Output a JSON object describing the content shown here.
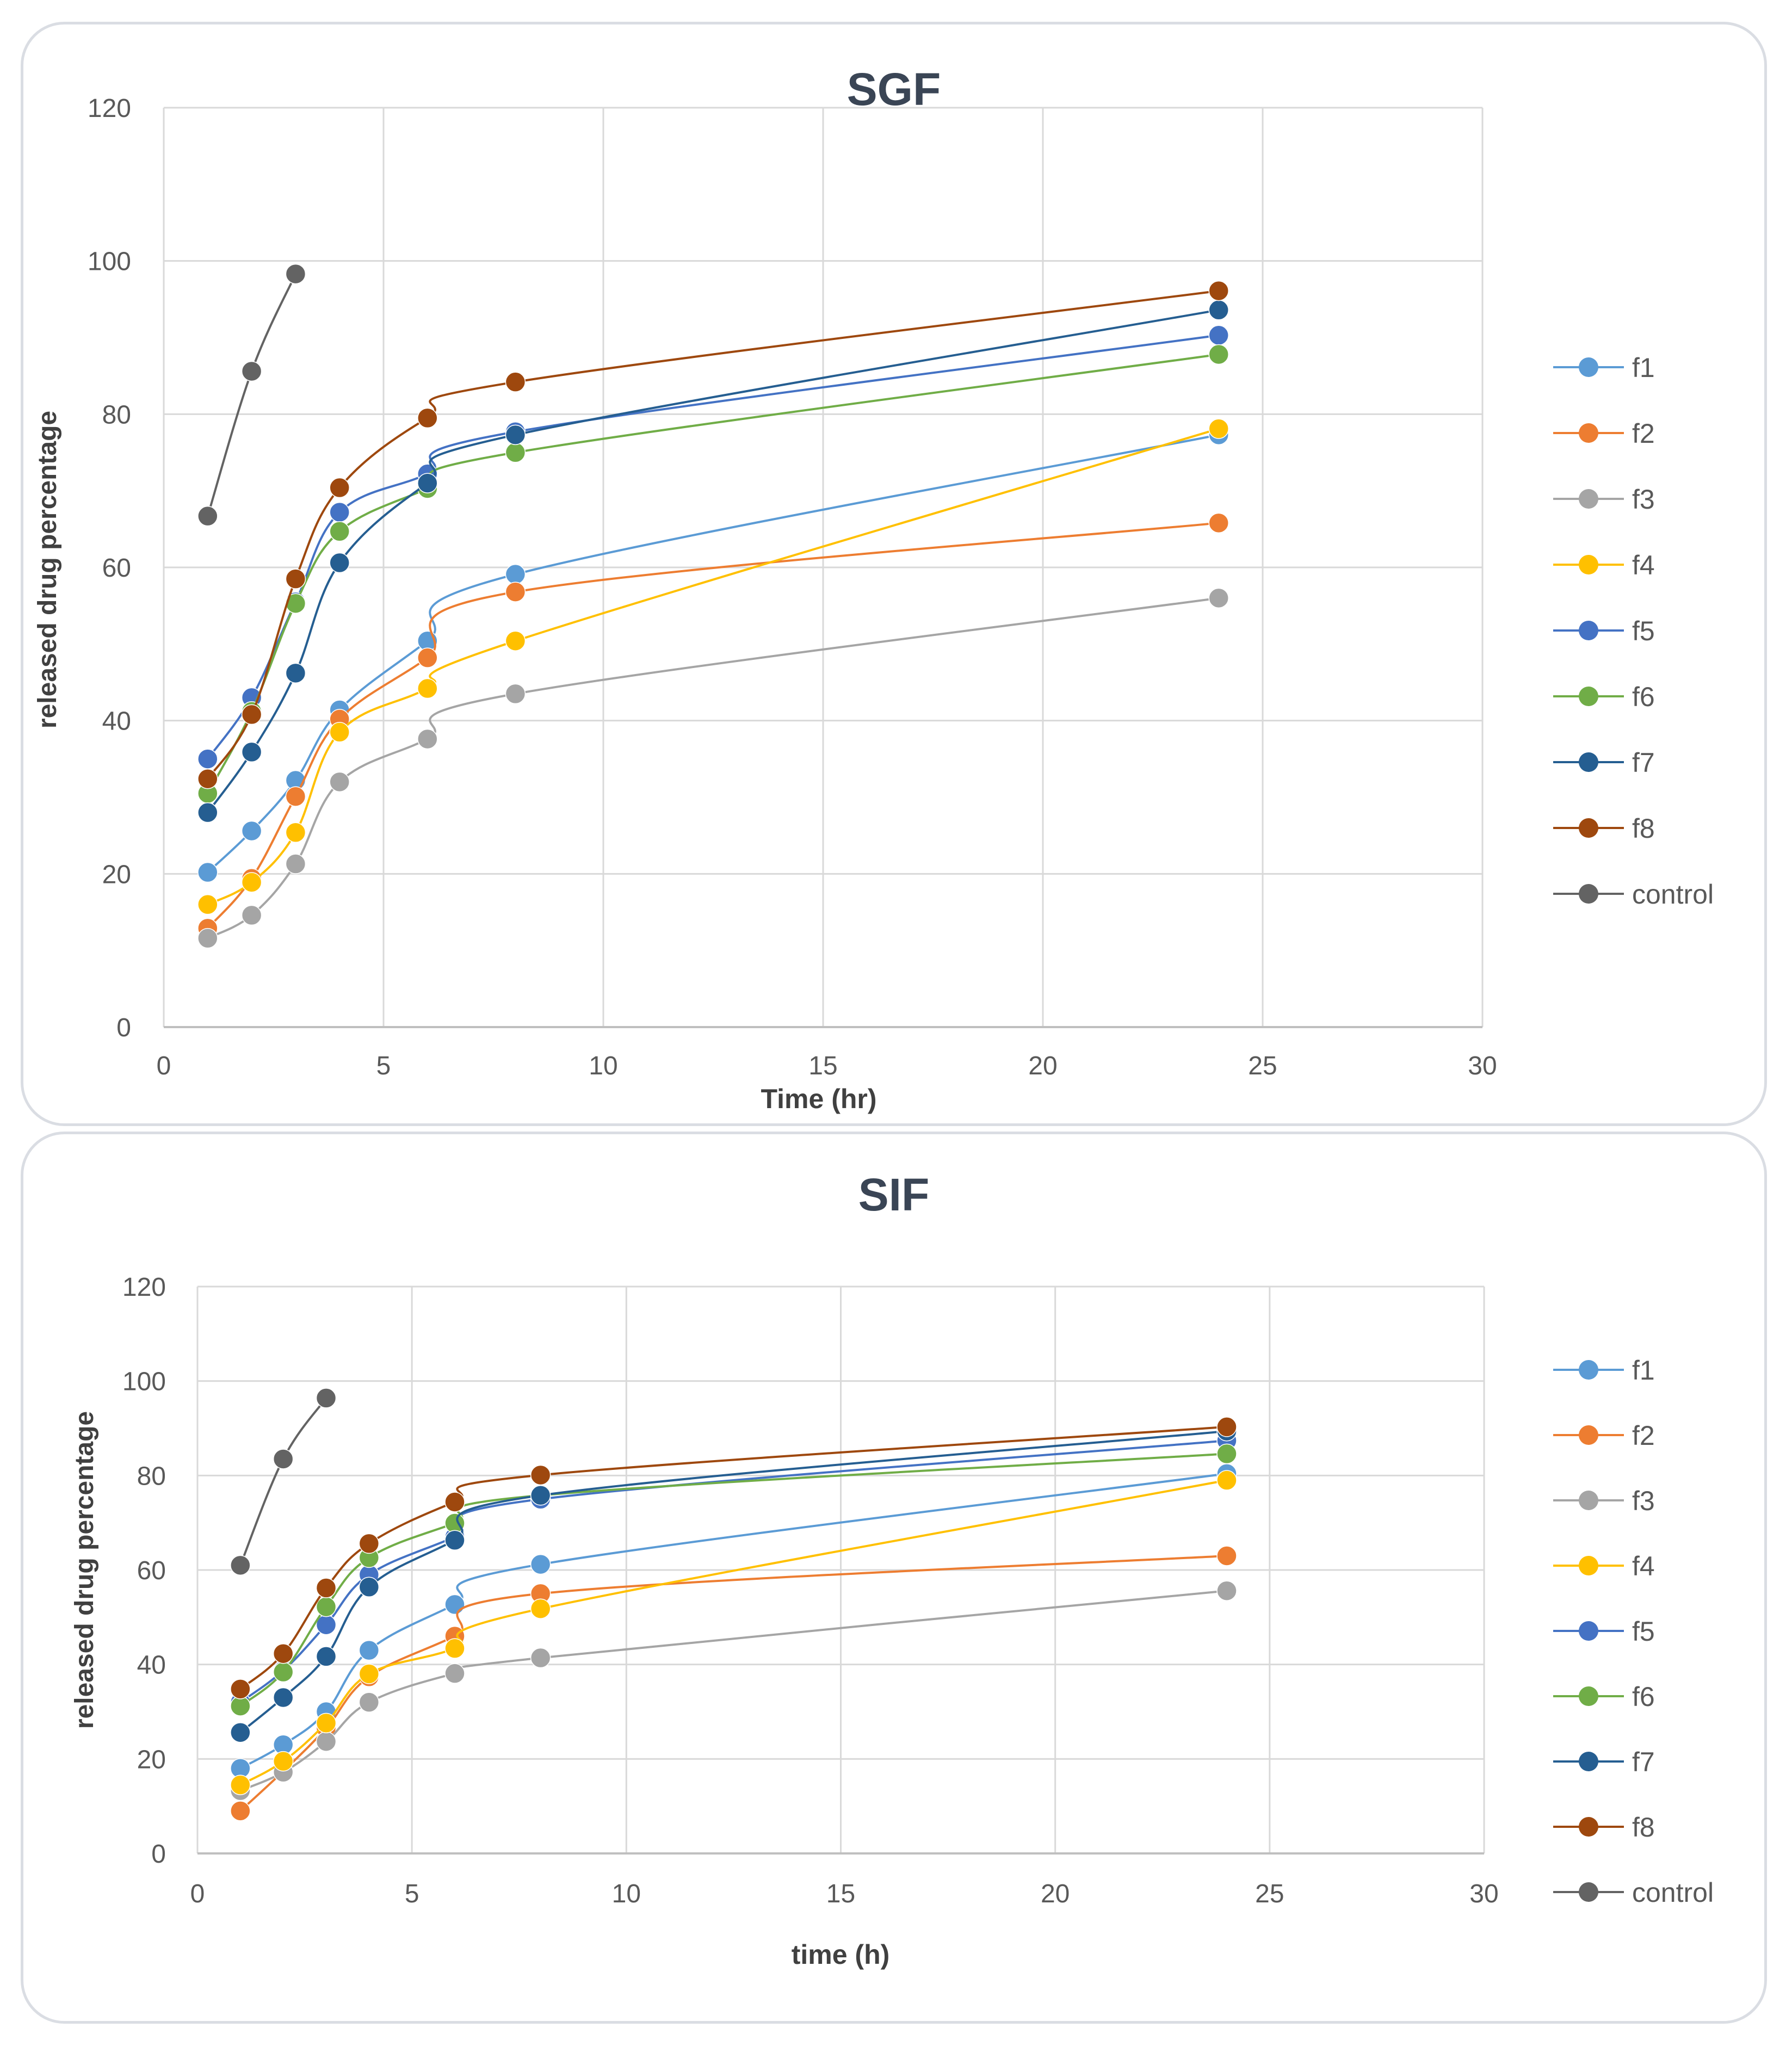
{
  "chart_data": [
    {
      "type": "line",
      "title": "SGF",
      "xlabel": "Time (hr)",
      "ylabel": "released drug percentage",
      "xlim": [
        0,
        30
      ],
      "ylim": [
        0,
        120
      ],
      "xticks": [
        0,
        5,
        10,
        15,
        20,
        25,
        30
      ],
      "yticks": [
        0,
        20,
        40,
        60,
        80,
        100,
        120
      ],
      "grid": true,
      "legend": "right",
      "series": [
        {
          "name": "f1",
          "color": "#5B9BD5",
          "x": [
            1,
            2,
            3,
            4,
            6,
            8,
            24
          ],
          "values": [
            20.2,
            25.6,
            32.2,
            41.4,
            50.4,
            59.1,
            77.3
          ]
        },
        {
          "name": "f2",
          "color": "#ED7D31",
          "x": [
            1,
            2,
            3,
            4,
            6,
            8,
            24
          ],
          "values": [
            12.9,
            19.4,
            30.1,
            40.2,
            48.2,
            56.8,
            65.8
          ]
        },
        {
          "name": "f3",
          "color": "#A5A5A5",
          "x": [
            1,
            2,
            3,
            4,
            6,
            8,
            24
          ],
          "values": [
            11.6,
            14.6,
            21.3,
            32.0,
            37.6,
            43.5,
            56.0
          ]
        },
        {
          "name": "f4",
          "color": "#FFC000",
          "x": [
            1,
            2,
            3,
            4,
            6,
            8,
            24
          ],
          "values": [
            16.0,
            18.9,
            25.4,
            38.5,
            44.2,
            50.4,
            78.1
          ]
        },
        {
          "name": "f5",
          "color": "#4472C4",
          "x": [
            1,
            2,
            3,
            4,
            6,
            8,
            24
          ],
          "values": [
            35.0,
            43.0,
            55.5,
            67.2,
            72.2,
            77.7,
            90.3
          ]
        },
        {
          "name": "f6",
          "color": "#70AD47",
          "x": [
            1,
            2,
            3,
            4,
            6,
            8,
            24
          ],
          "values": [
            30.5,
            41.2,
            55.3,
            64.7,
            70.3,
            75.0,
            87.8
          ]
        },
        {
          "name": "f7",
          "color": "#255E91",
          "x": [
            1,
            2,
            3,
            4,
            6,
            8,
            24
          ],
          "values": [
            28.0,
            35.9,
            46.2,
            60.6,
            71.0,
            77.3,
            93.6
          ]
        },
        {
          "name": "f8",
          "color": "#9E480E",
          "x": [
            1,
            2,
            3,
            4,
            6,
            8,
            24
          ],
          "values": [
            32.4,
            40.8,
            58.5,
            70.4,
            79.5,
            84.2,
            96.1
          ]
        },
        {
          "name": "control",
          "color": "#636363",
          "x": [
            1,
            2,
            3
          ],
          "values": [
            66.7,
            85.6,
            98.3
          ]
        }
      ]
    },
    {
      "type": "line",
      "title": "SIF",
      "xlabel": "time (h)",
      "ylabel": "released drug percentage",
      "xlim": [
        0,
        30
      ],
      "ylim": [
        0,
        120
      ],
      "xticks": [
        0,
        5,
        10,
        15,
        20,
        25,
        30
      ],
      "yticks": [
        0,
        20,
        40,
        60,
        80,
        100,
        120
      ],
      "grid": true,
      "legend": "right",
      "series": [
        {
          "name": "f1",
          "color": "#5B9BD5",
          "x": [
            1,
            2,
            3,
            4,
            6,
            8,
            24
          ],
          "values": [
            18.0,
            23.0,
            30.0,
            43.0,
            52.7,
            61.2,
            80.4
          ]
        },
        {
          "name": "f2",
          "color": "#ED7D31",
          "x": [
            1,
            2,
            3,
            4,
            6,
            8,
            24
          ],
          "values": [
            9.0,
            17.4,
            26.5,
            37.4,
            46.0,
            55.0,
            63.0
          ]
        },
        {
          "name": "f3",
          "color": "#A5A5A5",
          "x": [
            1,
            2,
            3,
            4,
            6,
            8,
            24
          ],
          "values": [
            13.3,
            17.2,
            23.7,
            32.0,
            38.1,
            41.4,
            55.6
          ]
        },
        {
          "name": "f4",
          "color": "#FFC000",
          "x": [
            1,
            2,
            3,
            4,
            6,
            8,
            24
          ],
          "values": [
            14.5,
            19.5,
            27.6,
            38.0,
            43.4,
            51.8,
            79.0
          ]
        },
        {
          "name": "f5",
          "color": "#4472C4",
          "x": [
            1,
            2,
            3,
            4,
            6,
            8,
            24
          ],
          "values": [
            32.0,
            38.7,
            48.4,
            59.0,
            67.0,
            75.0,
            87.4
          ]
        },
        {
          "name": "f6",
          "color": "#70AD47",
          "x": [
            1,
            2,
            3,
            4,
            6,
            8,
            24
          ],
          "values": [
            31.2,
            38.4,
            52.2,
            62.6,
            69.9,
            75.8,
            84.6
          ]
        },
        {
          "name": "f7",
          "color": "#255E91",
          "x": [
            1,
            2,
            3,
            4,
            6,
            8,
            24
          ],
          "values": [
            25.6,
            33.0,
            41.7,
            56.4,
            66.3,
            75.8,
            89.4
          ]
        },
        {
          "name": "f8",
          "color": "#9E480E",
          "x": [
            1,
            2,
            3,
            4,
            6,
            8,
            24
          ],
          "values": [
            34.8,
            42.3,
            56.2,
            65.6,
            74.4,
            80.1,
            90.3
          ]
        },
        {
          "name": "control",
          "color": "#636363",
          "x": [
            1,
            2,
            3
          ],
          "values": [
            61.0,
            83.5,
            96.4
          ]
        }
      ]
    }
  ]
}
